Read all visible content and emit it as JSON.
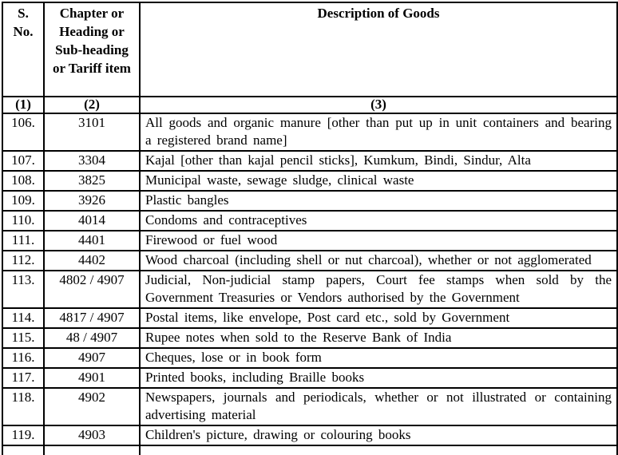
{
  "page": {
    "background_color": "#ffffff",
    "text_color": "#000000",
    "border_color": "#000000"
  },
  "table": {
    "headers": {
      "col1": "S. No.",
      "col2": "Chapter or Heading or Sub-heading or Tariff item",
      "col3": "Description of Goods"
    },
    "index_row": [
      "(1)",
      "(2)",
      "(3)"
    ],
    "rows": [
      {
        "sno": "106.",
        "code": "3101",
        "description": "All goods and organic manure [other than put up in unit containers and bearing a registered brand name]"
      },
      {
        "sno": "107.",
        "code": "3304",
        "description": "Kajal [other than kajal pencil sticks], Kumkum, Bindi, Sindur, Alta"
      },
      {
        "sno": "108.",
        "code": "3825",
        "description": "Municipal waste, sewage sludge, clinical waste"
      },
      {
        "sno": "109.",
        "code": "3926",
        "description": "Plastic bangles"
      },
      {
        "sno": "110.",
        "code": "4014",
        "description": "Condoms and contraceptives"
      },
      {
        "sno": "111.",
        "code": "4401",
        "description": "Firewood or fuel wood"
      },
      {
        "sno": "112.",
        "code": "4402",
        "description": "Wood charcoal (including shell or nut charcoal), whether or not agglomerated"
      },
      {
        "sno": "113.",
        "code": "4802 / 4907",
        "description": "Judicial, Non-judicial stamp papers, Court fee stamps when sold by the Government Treasuries or Vendors authorised by the Government"
      },
      {
        "sno": "114.",
        "code": "4817 / 4907",
        "description": "Postal items, like envelope, Post card etc., sold by Government"
      },
      {
        "sno": "115.",
        "code": "48 / 4907",
        "description": "Rupee notes when sold to the Reserve Bank of India"
      },
      {
        "sno": "116.",
        "code": "4907",
        "description": "Cheques, lose or in book form"
      },
      {
        "sno": "117.",
        "code": "4901",
        "description": "Printed books, including Braille books"
      },
      {
        "sno": "118.",
        "code": "4902",
        "description": "Newspapers, journals and periodicals, whether or not illustrated or containing advertising material"
      },
      {
        "sno": "119.",
        "code": "4903",
        "description": "Children's picture, drawing or colouring books"
      }
    ]
  }
}
